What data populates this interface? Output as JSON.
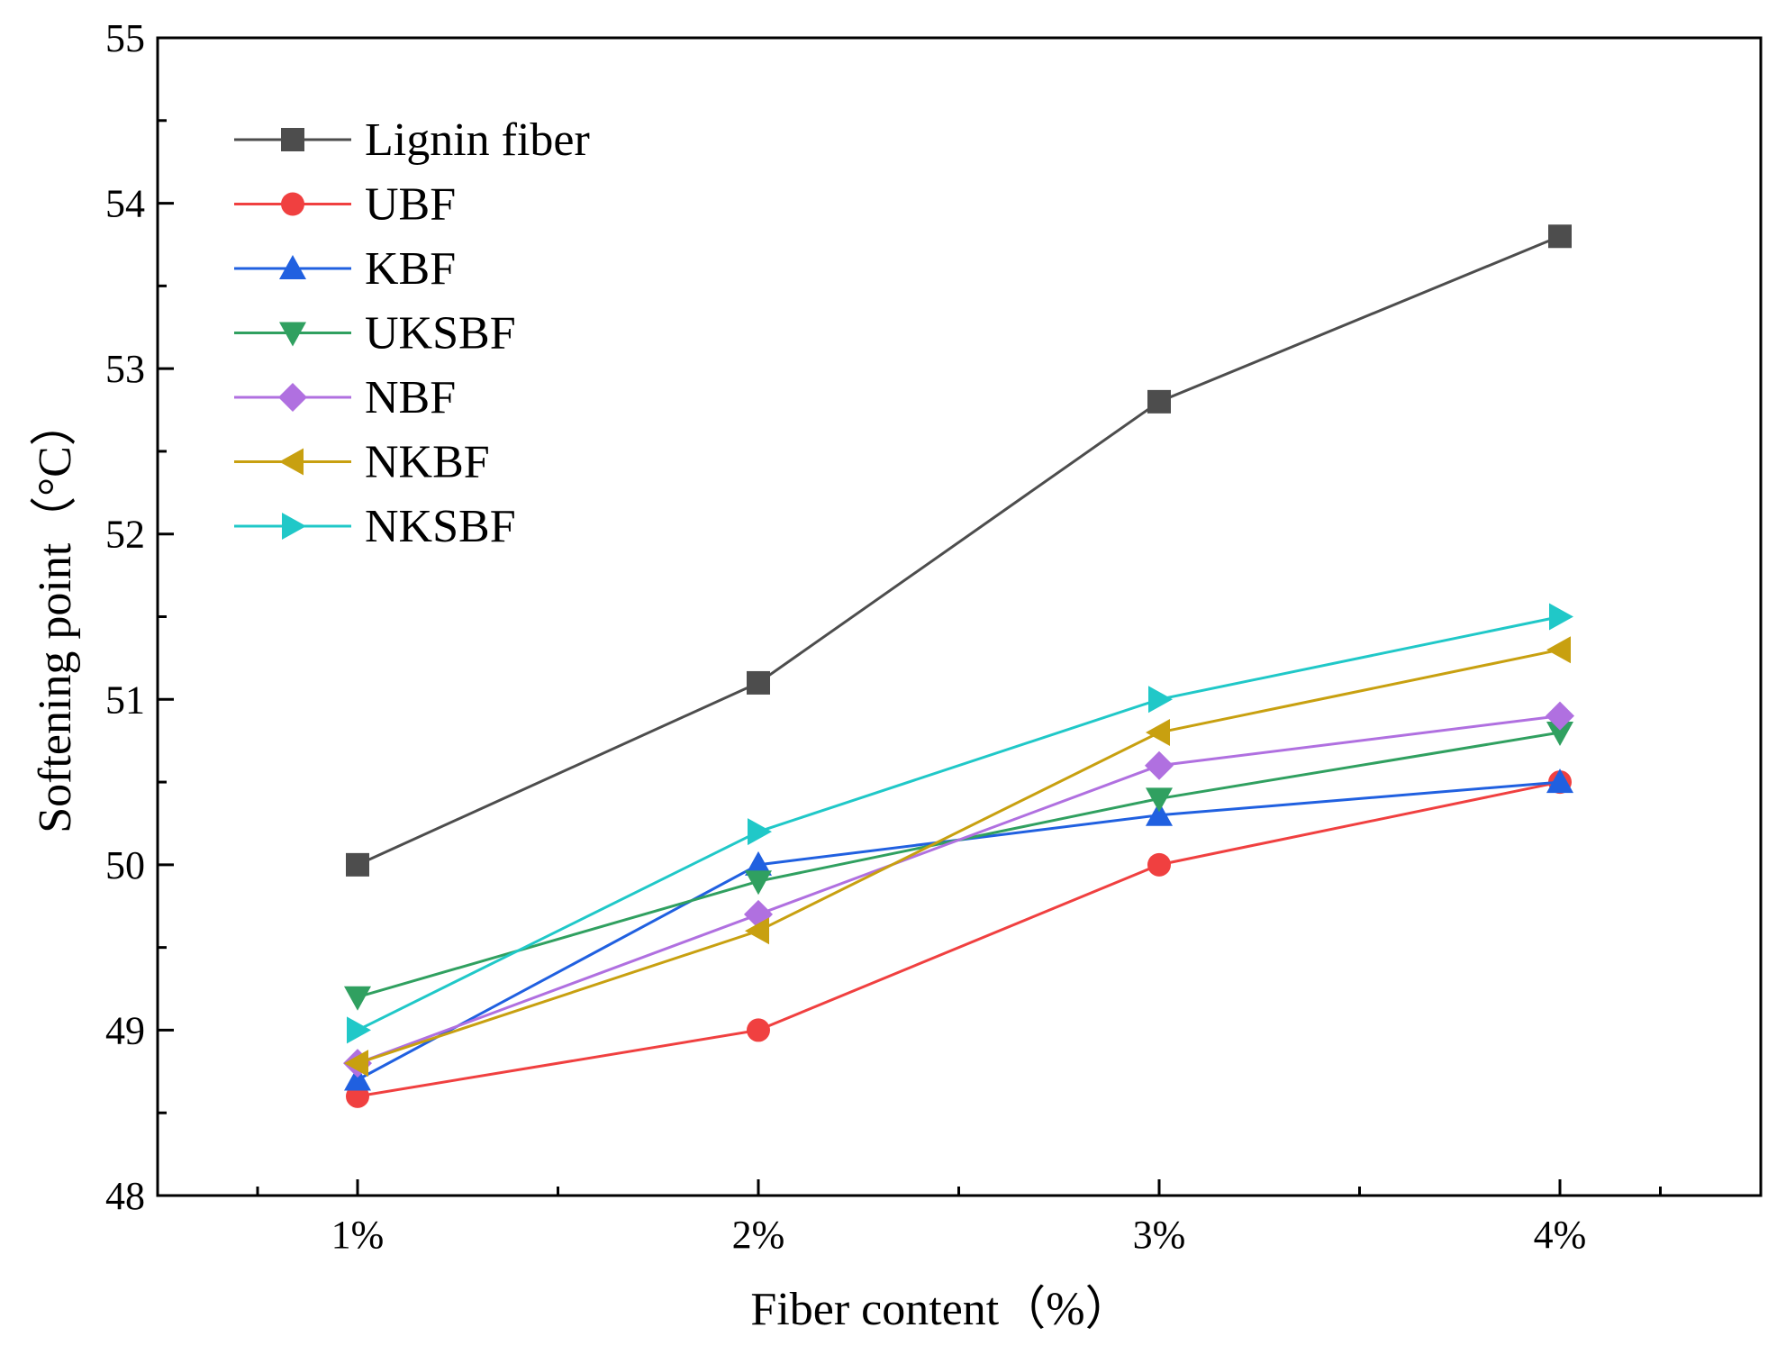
{
  "chart_data": {
    "type": "line",
    "title": "",
    "xlabel": "Fiber content（%）",
    "ylabel": "Softening point（°C）",
    "categories": [
      "1%",
      "2%",
      "3%",
      "4%"
    ],
    "ylim": [
      48,
      55
    ],
    "yticks": [
      48,
      49,
      50,
      51,
      52,
      53,
      54,
      55
    ],
    "grid": false,
    "legend_position": "top-left",
    "series": [
      {
        "name": "Lignin fiber",
        "marker": "square",
        "color": "#4d4d4d",
        "values": [
          50.0,
          51.1,
          52.8,
          53.8
        ]
      },
      {
        "name": "UBF",
        "marker": "circle",
        "color": "#f04040",
        "values": [
          48.6,
          49.0,
          50.0,
          50.5
        ]
      },
      {
        "name": "KBF",
        "marker": "triangle-up",
        "color": "#2060e0",
        "values": [
          48.7,
          50.0,
          50.3,
          50.5
        ]
      },
      {
        "name": "UKSBF",
        "marker": "triangle-down",
        "color": "#30a060",
        "values": [
          49.2,
          49.9,
          50.4,
          50.8
        ]
      },
      {
        "name": "NBF",
        "marker": "diamond",
        "color": "#b070e0",
        "values": [
          48.8,
          49.7,
          50.6,
          50.9
        ]
      },
      {
        "name": "NKBF",
        "marker": "triangle-left",
        "color": "#c8a010",
        "values": [
          48.8,
          49.6,
          50.8,
          51.3
        ]
      },
      {
        "name": "NKSBF",
        "marker": "triangle-right",
        "color": "#20c8c8",
        "values": [
          49.0,
          50.2,
          51.0,
          51.5
        ]
      }
    ]
  }
}
